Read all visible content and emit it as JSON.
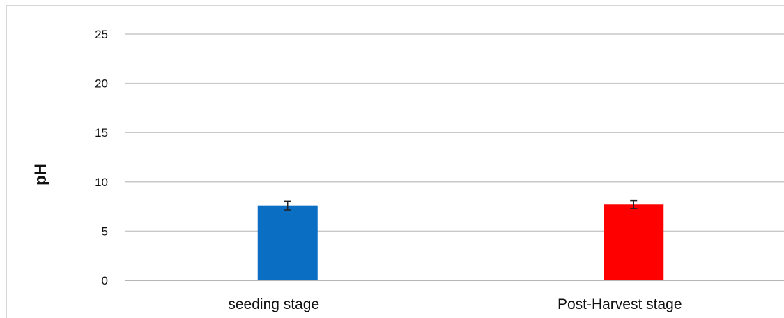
{
  "chart_data": {
    "type": "bar",
    "title": "",
    "xlabel": "",
    "ylabel": "pH",
    "categories": [
      "seeding stage",
      "Post-Harvest stage"
    ],
    "values": [
      7.6,
      7.7
    ],
    "errors": [
      0.45,
      0.4
    ],
    "bar_colors": [
      "#0a6fc2",
      "#ff0000"
    ],
    "ylim": [
      0,
      25
    ],
    "yticks": [
      0,
      5,
      10,
      15,
      20,
      25
    ],
    "grid": true,
    "legend": "none"
  }
}
